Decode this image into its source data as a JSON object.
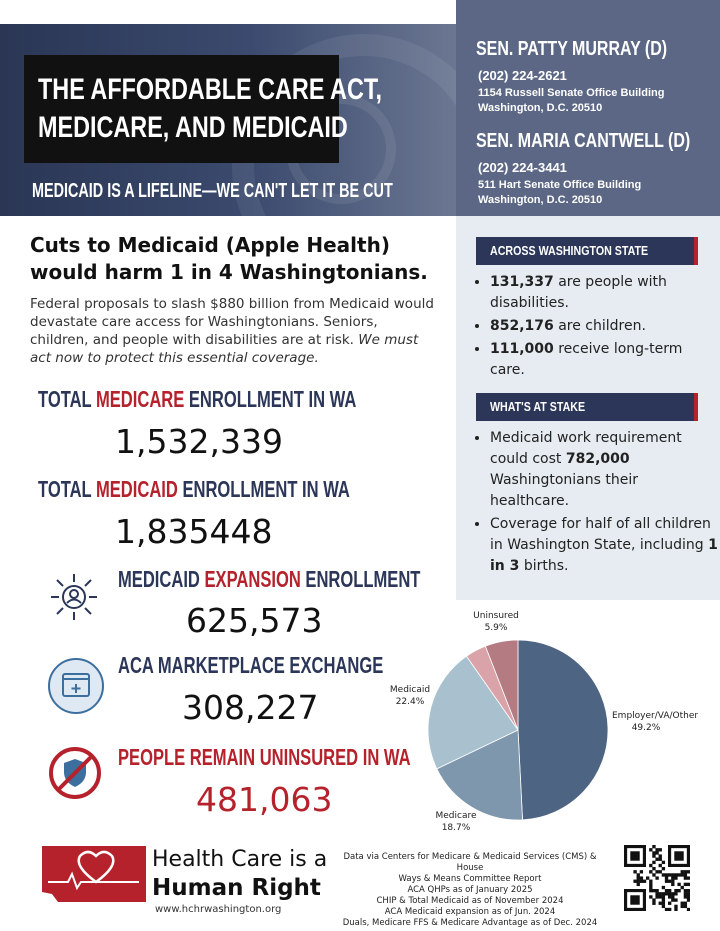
{
  "header": {
    "title_line1": "THE AFFORDABLE CARE ACT,",
    "title_line2": "MEDICARE, AND MEDICAID",
    "tagline": "MEDICAID IS A LIFELINE—WE CAN'T LET IT BE CUT"
  },
  "senators": [
    {
      "name": "SEN. PATTY MURRAY (D)",
      "phone": "(202) 224-2621",
      "address1": "1154 Russell Senate Office Building",
      "address2": "Washington, D.C. 20510"
    },
    {
      "name": "SEN. MARIA CANTWELL (D)",
      "phone": "(202) 224-3441",
      "address1": "511 Hart Senate Office Building",
      "address2": "Washington, D.C. 20510"
    }
  ],
  "main": {
    "headline": "Cuts to Medicaid (Apple Health) would harm 1 in 4 Washingtonians.",
    "intro": "Federal proposals to slash $880 billion from Medicaid would devastate care access for Washingtonians. Seniors, children, and people with disabilities are at risk.",
    "intro_emphasis": "We must act now to protect this essential coverage."
  },
  "stats": [
    {
      "pre": "TOTAL ",
      "highlight": "MEDICARE",
      "post": " ENROLLMENT IN WA",
      "value": "1,532,339"
    },
    {
      "pre": "TOTAL ",
      "highlight": "MEDICAID",
      "post": " ENROLLMENT IN WA",
      "value": "1,835448"
    },
    {
      "pre": "MEDICAID ",
      "highlight": "EXPANSION",
      "post": " ENROLLMENT",
      "value": "625,573"
    },
    {
      "pre": "ACA MARKETPLACE EXCHANGE",
      "highlight": "",
      "post": "",
      "value": "308,227"
    },
    {
      "pre": "",
      "highlight": "PEOPLE REMAIN UNINSURED IN WA",
      "post": "",
      "value": "481,063"
    }
  ],
  "across_wa": {
    "heading": "ACROSS WASHINGTON STATE",
    "items": [
      {
        "bold": "131,337",
        "text": " are people with disabilities."
      },
      {
        "bold": "852,176",
        "text": " are children."
      },
      {
        "bold": "111,000",
        "text": " receive long-term care."
      }
    ]
  },
  "at_stake": {
    "heading": "WHAT'S AT STAKE",
    "item1_pre": "Medicaid work requirement could cost ",
    "item1_bold": "782,000",
    "item1_post": " Washingtonians their healthcare.",
    "item2_pre": "Coverage for half of all children in Washington State, including ",
    "item2_bold": "1 in 3",
    "item2_post": " births."
  },
  "chart_data": {
    "type": "pie",
    "slices": [
      {
        "label": "Employer/VA/Other",
        "value": 49.2,
        "value_label": "49.2%",
        "color": "#4e6483"
      },
      {
        "label": "Medicare",
        "value": 18.7,
        "value_label": "18.7%",
        "color": "#7f97ad"
      },
      {
        "label": "Medicaid",
        "value": 22.4,
        "value_label": "22.4%",
        "color": "#a9c1cf"
      },
      {
        "label": "",
        "value": 3.8,
        "value_label": "",
        "color": "#d9a3a9"
      },
      {
        "label": "Uninsured",
        "value": 5.9,
        "value_label": "5.9%",
        "color": "#b47b82"
      }
    ]
  },
  "footer": {
    "logo_line1": "Health Care is a",
    "logo_line2": "Human Right",
    "url": "www.hchrwashington.org",
    "notes": [
      "Data via Centers for Medicare & Medicaid Services (CMS) & House",
      "Ways & Means Committee Report",
      "ACA QHPs as of January 2025",
      "CHIP & Total Medicaid as of November 2024",
      "ACA Medicaid expansion as of Jun. 2024",
      "Duals, Medicare FFS & Medicare Advantage as of Dec. 2024"
    ]
  },
  "colors": {
    "navy": "#2b3658",
    "red": "#b5222b",
    "panel": "#e6ecf1"
  }
}
